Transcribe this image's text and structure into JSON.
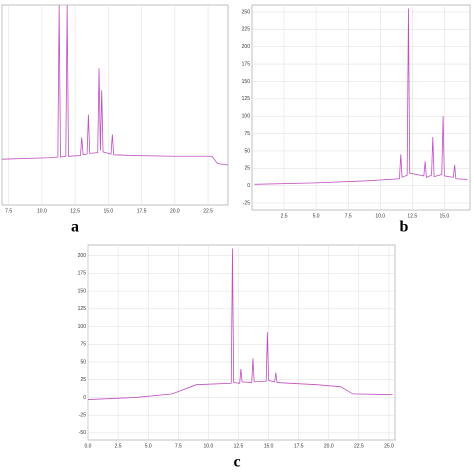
{
  "chart_data": [
    {
      "type": "line",
      "label": "a",
      "xlim": [
        7,
        24
      ],
      "ylim": [
        -25,
        250
      ],
      "grid": true,
      "xticks": [
        7.5,
        {
          "value": 10,
          "label": "10.0"
        },
        12.5,
        {
          "value": 15,
          "label": "15.0"
        },
        17.5,
        {
          "value": 20,
          "label": "20.0"
        },
        22.5
      ],
      "series": [
        {
          "color": "#c050c0",
          "x": [
            7,
            10.5,
            11.2,
            11.3,
            11.4,
            11.8,
            11.9,
            12.0,
            12.9,
            13.0,
            13.1,
            13.4,
            13.5,
            13.6,
            14.2,
            14.3,
            14.4,
            14.5,
            14.6,
            15.2,
            15.3,
            15.4,
            17,
            20,
            22.8,
            23.2,
            24
          ],
          "values": [
            38,
            40,
            41,
            250,
            41,
            42,
            250,
            42,
            43,
            68,
            44,
            45,
            99,
            46,
            47,
            163,
            50,
            133,
            48,
            45,
            72,
            44,
            43,
            42,
            42,
            32,
            30
          ]
        }
      ]
    },
    {
      "type": "line",
      "label": "b",
      "xlim": [
        0,
        17
      ],
      "ylim": [
        -35,
        260
      ],
      "grid": true,
      "xticks": [
        2.5,
        {
          "value": 5,
          "label": "5.0"
        },
        7.5,
        {
          "value": 10,
          "label": "10.0"
        },
        12.5,
        {
          "value": 15,
          "label": "15.0"
        }
      ],
      "yticks": [
        250,
        225,
        200,
        175,
        150,
        125,
        100,
        75,
        50,
        25,
        0,
        -25
      ],
      "series": [
        {
          "color": "#c050c0",
          "x": [
            0.2,
            5,
            9,
            11.5,
            11.6,
            11.7,
            12.1,
            12.2,
            12.3,
            13.4,
            13.5,
            13.6,
            14.0,
            14.1,
            14.2,
            14.8,
            14.9,
            15.0,
            15.7,
            15.8,
            15.9,
            16.8
          ],
          "values": [
            2,
            4,
            7,
            10,
            45,
            12,
            15,
            255,
            18,
            14,
            35,
            12,
            15,
            70,
            13,
            16,
            100,
            14,
            12,
            30,
            10,
            9
          ]
        }
      ]
    },
    {
      "type": "line",
      "label": "c",
      "xlim": [
        0,
        25.5
      ],
      "ylim": [
        -60,
        215
      ],
      "grid": true,
      "xticks": [
        {
          "value": 0,
          "label": "0.0"
        },
        2.5,
        {
          "value": 5,
          "label": "5.0"
        },
        7.5,
        {
          "value": 10,
          "label": "10.0"
        },
        12.5,
        {
          "value": 15,
          "label": "15.0"
        },
        17.5,
        {
          "value": 20,
          "label": "20.0"
        },
        22.5,
        {
          "value": 25,
          "label": "25.0"
        }
      ],
      "yticks": [
        200,
        175,
        150,
        125,
        100,
        75,
        50,
        25,
        0,
        -25,
        -50
      ],
      "series": [
        {
          "color": "#c050c0",
          "x": [
            0,
            4,
            7,
            9,
            11.9,
            12.0,
            12.1,
            12.6,
            12.7,
            12.8,
            13.6,
            13.7,
            13.8,
            14.8,
            14.9,
            15.0,
            15.5,
            15.6,
            15.7,
            19,
            21,
            22,
            25.3
          ],
          "values": [
            -3,
            0,
            5,
            18,
            20,
            210,
            21,
            20,
            40,
            22,
            21,
            55,
            22,
            23,
            92,
            24,
            22,
            35,
            21,
            18,
            15,
            5,
            4
          ]
        }
      ]
    }
  ]
}
